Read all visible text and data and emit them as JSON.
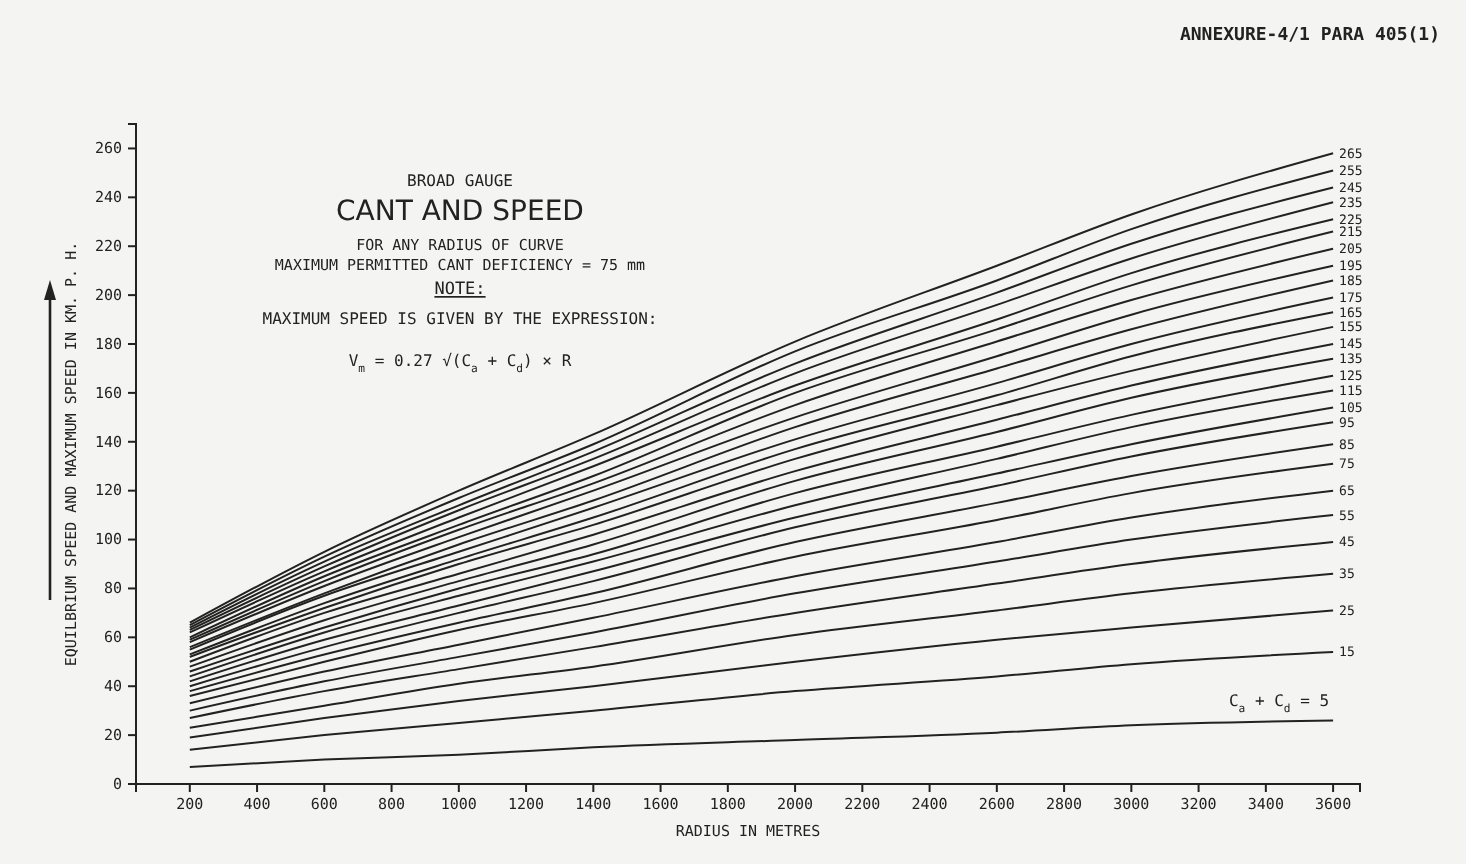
{
  "chart_data": {
    "type": "line",
    "title": "CANT AND SPEED",
    "subtitle": "BROAD GAUGE",
    "xlabel": "RADIUS IN METRES",
    "ylabel": "EQUILBRIUM SPEED AND MAXIMUM SPEED IN KM. P. H.",
    "annotations": [
      "ANNEXURE-4/1 PARA 405(1)",
      "FOR ANY RADIUS OF CURVE",
      "MAXIMUM PERMITTED CANT DEFICIENCY = 75 mm",
      "NOTE:",
      "MAXIMUM SPEED IS GIVEN BY THE EXPRESSION:",
      "V$_{m}$ = 0.27 √(C$_{a}$ + C$_{d}$) × R"
    ],
    "x": [
      200,
      600,
      1000,
      1400,
      2000,
      2600,
      3000,
      3600
    ],
    "xlim": [
      40,
      3680
    ],
    "xticks": [
      200,
      400,
      600,
      800,
      1000,
      1200,
      1400,
      1600,
      1800,
      2000,
      2200,
      2400,
      2600,
      2800,
      3000,
      3200,
      3400,
      3600
    ],
    "ylim": [
      0,
      270
    ],
    "yticks": [
      0,
      20,
      40,
      60,
      80,
      100,
      120,
      140,
      160,
      180,
      200,
      220,
      240,
      260
    ],
    "grid": false,
    "legend": false,
    "marker": "none",
    "line_style": "solid",
    "series": [
      {
        "name": "C$_{a}$ + C$_{d}$ = 5",
        "color": "#222222",
        "values": [
          7,
          10,
          12,
          15,
          18,
          21,
          24,
          26
        ]
      },
      {
        "name": "15",
        "color": "#222222",
        "values": [
          14,
          20,
          25,
          30,
          38,
          44,
          49,
          54
        ]
      },
      {
        "name": "25",
        "color": "#222222",
        "values": [
          19,
          27,
          34,
          40,
          50,
          59,
          64,
          71
        ]
      },
      {
        "name": "35",
        "color": "#222222",
        "values": [
          23,
          32,
          41,
          48,
          61,
          71,
          78,
          86
        ]
      },
      {
        "name": "45",
        "color": "#222222",
        "values": [
          27,
          38,
          47,
          56,
          70,
          82,
          90,
          99
        ]
      },
      {
        "name": "55",
        "color": "#222222",
        "values": [
          30,
          42,
          52,
          62,
          78,
          91,
          100,
          110
        ]
      },
      {
        "name": "65",
        "color": "#222222",
        "values": [
          33,
          46,
          57,
          68,
          85,
          99,
          109,
          120
        ]
      },
      {
        "name": "75",
        "color": "#222222",
        "values": [
          36,
          50,
          63,
          74,
          93,
          108,
          119,
          131
        ]
      },
      {
        "name": "85",
        "color": "#222222",
        "values": [
          38,
          53,
          66,
          78,
          99,
          115,
          126,
          139
        ]
      },
      {
        "name": "95",
        "color": "#222222",
        "values": [
          40,
          56,
          70,
          83,
          105,
          122,
          134,
          148
        ]
      },
      {
        "name": "105",
        "color": "#222222",
        "values": [
          42,
          59,
          73,
          87,
          109,
          127,
          139,
          154
        ]
      },
      {
        "name": "115",
        "color": "#222222",
        "values": [
          44,
          62,
          77,
          91,
          114,
          133,
          146,
          161
        ]
      },
      {
        "name": "125",
        "color": "#222222",
        "values": [
          46,
          64,
          80,
          94,
          119,
          138,
          151,
          167
        ]
      },
      {
        "name": "135",
        "color": "#222222",
        "values": [
          48,
          67,
          83,
          98,
          124,
          144,
          158,
          174
        ]
      },
      {
        "name": "145",
        "color": "#222222",
        "values": [
          50,
          70,
          86,
          102,
          128,
          149,
          163,
          180
        ]
      },
      {
        "name": "155",
        "color": "#222222",
        "values": [
          52,
          72,
          90,
          106,
          133,
          155,
          169,
          187
        ]
      },
      {
        "name": "165",
        "color": "#222222",
        "values": [
          53,
          74,
          92,
          109,
          137,
          159,
          175,
          193
        ]
      },
      {
        "name": "175",
        "color": "#222222",
        "values": [
          55,
          77,
          95,
          113,
          141,
          164,
          180,
          199
        ]
      },
      {
        "name": "185",
        "color": "#222222",
        "values": [
          56,
          78,
          98,
          116,
          146,
          170,
          186,
          206
        ]
      },
      {
        "name": "195",
        "color": "#222222",
        "values": [
          58,
          81,
          101,
          120,
          150,
          175,
          192,
          212
        ]
      },
      {
        "name": "205",
        "color": "#222222",
        "values": [
          59,
          83,
          104,
          123,
          155,
          181,
          198,
          219
        ]
      },
      {
        "name": "215",
        "color": "#222222",
        "values": [
          60,
          85,
          106,
          126,
          160,
          186,
          204,
          226
        ]
      },
      {
        "name": "225",
        "color": "#222222",
        "values": [
          62,
          87,
          109,
          130,
          163,
          190,
          209,
          231
        ]
      },
      {
        "name": "235",
        "color": "#222222",
        "values": [
          63,
          89,
          112,
          133,
          168,
          196,
          215,
          238
        ]
      },
      {
        "name": "245",
        "color": "#222222",
        "values": [
          64,
          91,
          114,
          136,
          172,
          201,
          221,
          244
        ]
      },
      {
        "name": "255",
        "color": "#222222",
        "values": [
          65,
          93,
          117,
          139,
          177,
          206,
          227,
          251
        ]
      },
      {
        "name": "265",
        "color": "#222222",
        "values": [
          66,
          95,
          120,
          143,
          181,
          212,
          233,
          258
        ]
      }
    ]
  }
}
